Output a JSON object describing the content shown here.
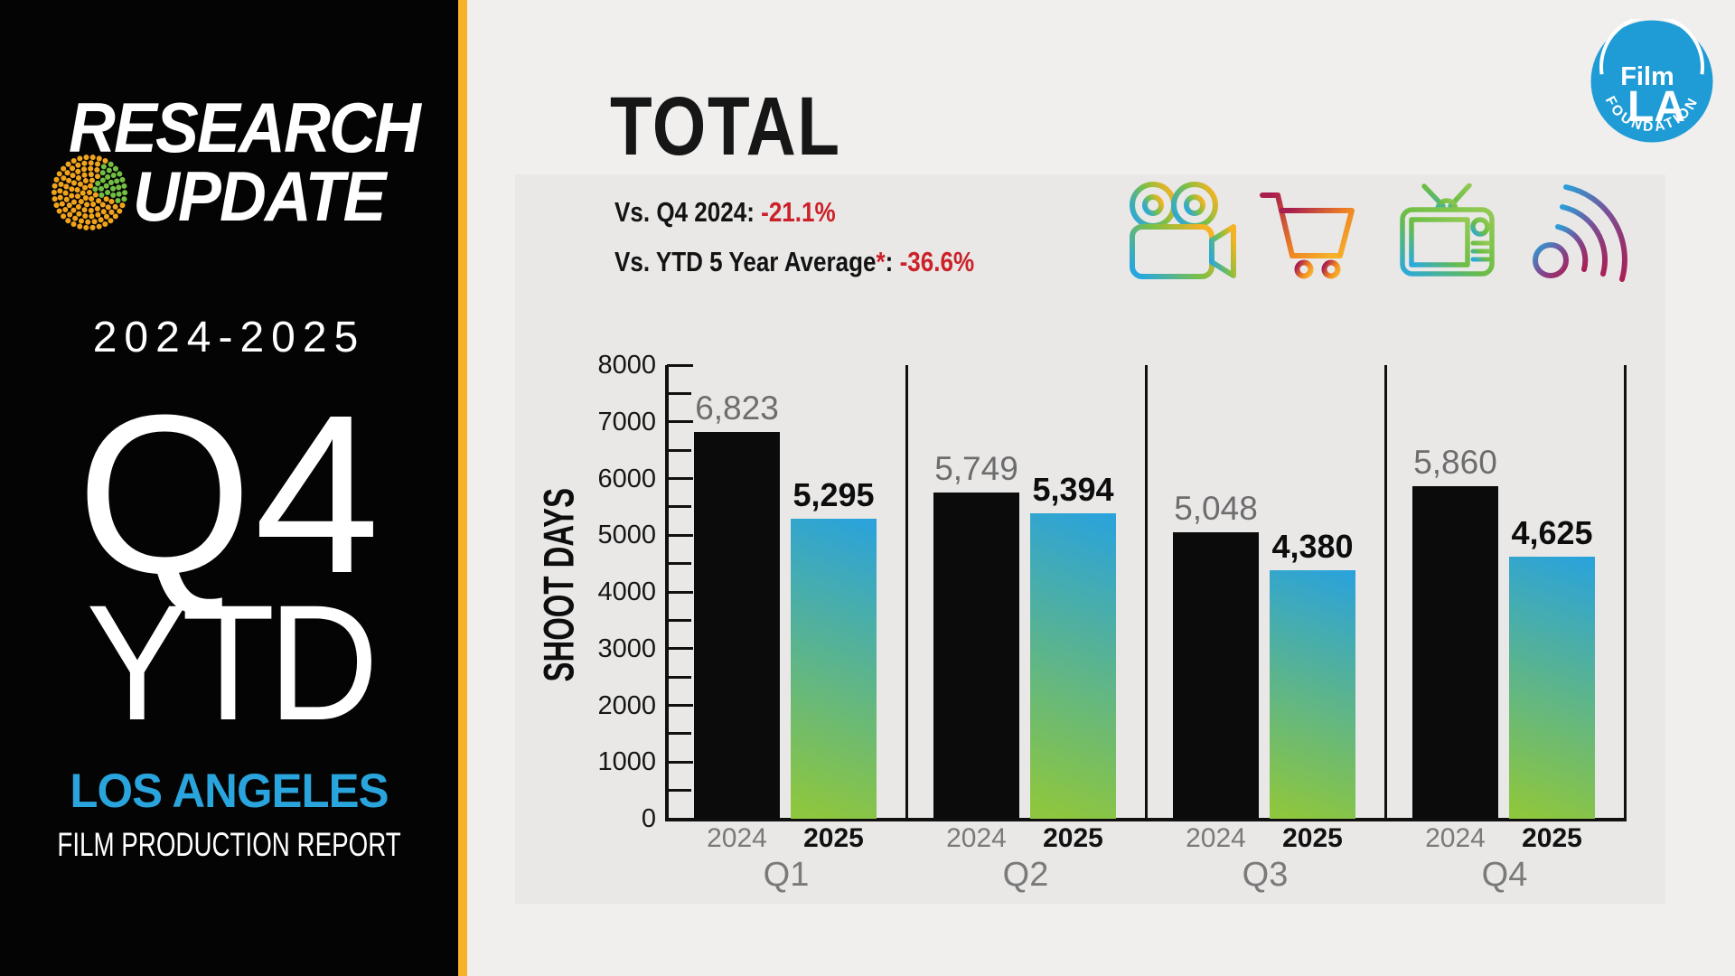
{
  "sidebar": {
    "brand_line1": "RESEARCH",
    "brand_line2": "UPDATE",
    "season": "2024-2025",
    "quarter": "Q4",
    "period": "YTD",
    "city": "LOS ANGELES",
    "report": "FILM PRODUCTION REPORT"
  },
  "header": {
    "title": "TOTAL",
    "stat1": {
      "label": "Vs. Q4 2024:",
      "value": "-21.1%"
    },
    "stat2": {
      "label": "Vs. YTD 5 Year Average",
      "asterisk": "*",
      "colon": ":",
      "value": "-36.6%"
    }
  },
  "logo": {
    "line1": "Film",
    "line2": "LA",
    "arc_text": "FOUNDATION"
  },
  "icons": [
    "film-camera",
    "shopping-cart",
    "television",
    "wireless-signal"
  ],
  "chart_data": {
    "type": "bar",
    "title": "TOTAL",
    "xlabel": "",
    "ylabel": "SHOOT DAYS",
    "ylim": [
      0,
      8000
    ],
    "ytick_step": 1000,
    "minor_tick_step": 500,
    "grid": false,
    "legend_position": "none",
    "categories": [
      "Q1",
      "Q2",
      "Q3",
      "Q4"
    ],
    "series": [
      {
        "name": "2024",
        "values": [
          6823,
          5749,
          5048,
          5860
        ],
        "labels": [
          "6,823",
          "5,749",
          "5,048",
          "5,860"
        ]
      },
      {
        "name": "2025",
        "values": [
          5295,
          5394,
          4380,
          4625
        ],
        "labels": [
          "5,295",
          "5,394",
          "4,380",
          "4,625"
        ]
      }
    ]
  },
  "colors": {
    "sidebar_black": "#040404",
    "accent_yellow": "#f6b327",
    "city_blue": "#2aa4dc",
    "logo_blue": "#1f9cd6",
    "negative_red": "#cc2129",
    "bar_2024": "#0b0b0b",
    "bar_2025_top": "#2ba3da",
    "bar_2025_bottom": "#8dc63f",
    "value_label_gray": "#6e6d6e",
    "pie_orange": "#f0a31c",
    "pie_green": "#72bf44"
  }
}
